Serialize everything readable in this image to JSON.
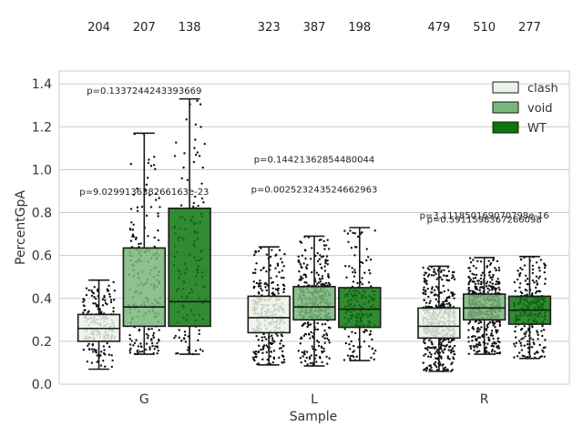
{
  "chart_data": {
    "type": "box",
    "xlabel": "Sample",
    "ylabel": "PercentGpA",
    "ylim": [
      0.0,
      1.46
    ],
    "yticks": [
      "0.0",
      "0.2",
      "0.4",
      "0.6",
      "0.8",
      "1.0",
      "1.2",
      "1.4"
    ],
    "categories": [
      "G",
      "L",
      "R"
    ],
    "grid": "horizontal",
    "legend_position": "top-right",
    "series": [
      {
        "name": "clash",
        "color": "#eaf3e8",
        "counts": [
          204,
          323,
          479
        ],
        "boxes": [
          {
            "whislo": 0.07,
            "q1": 0.2,
            "median": 0.26,
            "q3": 0.325,
            "whishi": 0.485
          },
          {
            "whislo": 0.09,
            "q1": 0.24,
            "median": 0.31,
            "q3": 0.41,
            "whishi": 0.64
          },
          {
            "whislo": 0.06,
            "q1": 0.215,
            "median": 0.27,
            "q3": 0.355,
            "whishi": 0.55
          }
        ]
      },
      {
        "name": "void",
        "color": "#79b67a",
        "counts": [
          207,
          387,
          510
        ],
        "boxes": [
          {
            "whislo": 0.14,
            "q1": 0.27,
            "median": 0.36,
            "q3": 0.635,
            "whishi": 1.17
          },
          {
            "whislo": 0.085,
            "q1": 0.3,
            "median": 0.36,
            "q3": 0.455,
            "whishi": 0.69
          },
          {
            "whislo": 0.14,
            "q1": 0.3,
            "median": 0.355,
            "q3": 0.42,
            "whishi": 0.59
          }
        ]
      },
      {
        "name": "WT",
        "color": "#0e750f",
        "counts": [
          138,
          198,
          277
        ],
        "boxes": [
          {
            "whislo": 0.14,
            "q1": 0.27,
            "median": 0.385,
            "q3": 0.82,
            "whishi": 1.33
          },
          {
            "whislo": 0.11,
            "q1": 0.265,
            "median": 0.35,
            "q3": 0.45,
            "whishi": 0.73
          },
          {
            "whislo": 0.12,
            "q1": 0.28,
            "median": 0.345,
            "q3": 0.41,
            "whishi": 0.595
          }
        ]
      }
    ],
    "annotations": [
      {
        "text": "p=0.1337244243393669",
        "x": "G",
        "y": 1.37
      },
      {
        "text": "p=9.029913638266163e-23",
        "x": "G",
        "y": 0.9
      },
      {
        "text": "p=0.14421362854480044",
        "x": "L",
        "y": 1.05
      },
      {
        "text": "p=0.002523243524662963",
        "x": "L",
        "y": 0.91
      },
      {
        "text": "p=3.111850169070798e-16",
        "x": "R",
        "y": 0.79
      },
      {
        "text": "p=0.5911598367266098",
        "x": "R",
        "y": 0.77
      }
    ]
  }
}
